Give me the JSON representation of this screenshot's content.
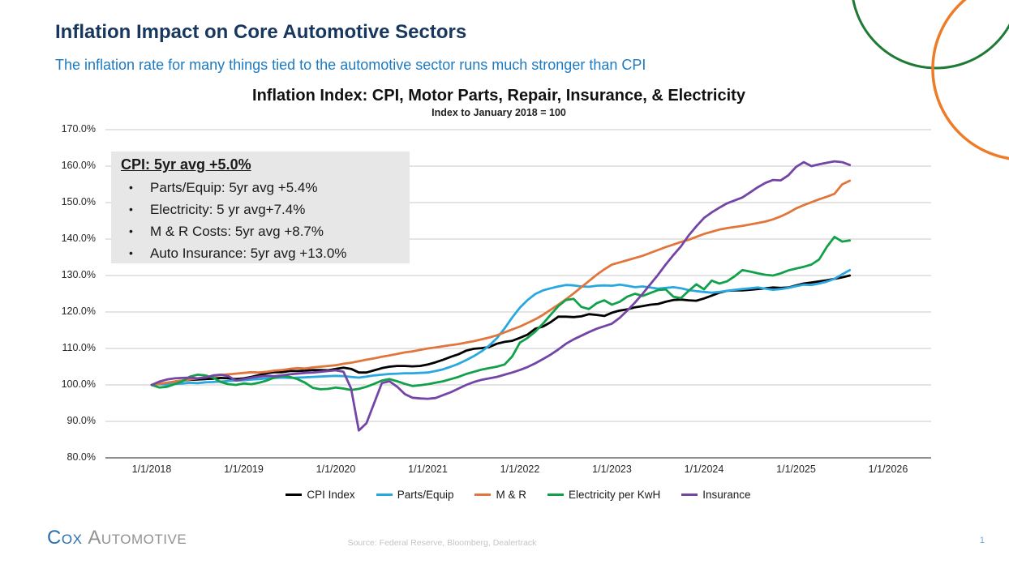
{
  "slide": {
    "title": "Inflation Impact on Core Automotive Sectors",
    "subtitle": "The inflation rate for many things tied to the automotive sector runs much stronger than CPI",
    "source": "Source: Federal Reserve, Bloomberg, Dealertrack",
    "page_number": "1",
    "logo_cox": "COX",
    "logo_auto": "AUTOMOTIVE",
    "logo_colors": {
      "cox_blue": "#2a6fad",
      "automotive_gray": "#909294"
    },
    "accent_colors": {
      "title_navy": "#17375e",
      "subtitle_blue": "#1e7ac0",
      "decor_green": "#1e7a34",
      "decor_orange": "#ee7b28"
    }
  },
  "annotation": {
    "heading": "CPI: 5yr avg +5.0%",
    "bullets": [
      "Parts/Equip: 5yr avg +5.4%",
      "Electricity: 5 yr avg+7.4%",
      "M & R Costs: 5yr avg +8.7%",
      "Auto Insurance: 5yr avg +13.0%"
    ]
  },
  "chart_data": {
    "type": "line",
    "title": "Inflation Index: CPI, Motor Parts, Repair, Insurance, & Electricity",
    "subtitle": "Index to January 2018 = 100",
    "x_start": "1/1/2018",
    "x_frequency": "monthly",
    "x_end": "8/1/2025",
    "x_tick_labels": [
      "1/1/2018",
      "1/1/2019",
      "1/1/2020",
      "1/1/2021",
      "1/1/2022",
      "1/1/2023",
      "1/1/2024",
      "1/1/2025",
      "1/1/2026"
    ],
    "y_tick_labels": [
      "170.0%",
      "160.0%",
      "150.0%",
      "140.0%",
      "130.0%",
      "120.0%",
      "110.0%",
      "100.0%",
      "90.0%",
      "80.0%"
    ],
    "ylim": [
      80,
      170
    ],
    "grid": true,
    "legend_position": "bottom",
    "grid_color": "#c9c9c9",
    "axis_color": "#6b6b6b",
    "series": [
      {
        "name": "CPI Index",
        "color": "#000000",
        "values": [
          100.0,
          100.3,
          100.5,
          100.9,
          101.2,
          101.4,
          101.5,
          101.6,
          101.7,
          101.9,
          101.8,
          101.6,
          101.8,
          102.2,
          102.7,
          103.2,
          103.5,
          103.5,
          103.8,
          103.8,
          103.9,
          104.1,
          104.1,
          104.0,
          104.4,
          104.7,
          104.4,
          103.4,
          103.4,
          104.0,
          104.6,
          105.0,
          105.2,
          105.2,
          105.1,
          105.2,
          105.6,
          106.2,
          106.9,
          107.7,
          108.4,
          109.4,
          109.9,
          110.1,
          110.4,
          111.3,
          111.8,
          112.1,
          112.9,
          113.8,
          115.4,
          116.0,
          117.2,
          118.7,
          118.7,
          118.6,
          118.8,
          119.4,
          119.2,
          118.9,
          119.8,
          120.4,
          120.7,
          121.3,
          121.6,
          122.0,
          122.2,
          122.8,
          123.3,
          123.4,
          123.2,
          123.1,
          123.7,
          124.5,
          125.3,
          125.8,
          125.9,
          125.9,
          126.1,
          126.3,
          126.5,
          126.7,
          126.6,
          126.7,
          127.3,
          127.8,
          128.1,
          128.4,
          128.7,
          129.1,
          129.5,
          130.0
        ]
      },
      {
        "name": "Parts/Equip",
        "color": "#29a8e0",
        "values": [
          100.0,
          100.2,
          100.1,
          100.3,
          100.4,
          100.6,
          100.5,
          100.7,
          100.8,
          100.9,
          101.1,
          101.2,
          101.3,
          101.5,
          101.6,
          101.8,
          101.9,
          102.0,
          101.9,
          102.0,
          102.1,
          102.2,
          102.3,
          102.4,
          102.5,
          102.4,
          102.2,
          102.0,
          102.3,
          102.6,
          102.8,
          103.0,
          103.1,
          103.2,
          103.2,
          103.3,
          103.4,
          103.8,
          104.3,
          105.0,
          105.8,
          106.8,
          107.9,
          109.2,
          110.8,
          112.8,
          115.5,
          118.5,
          121.2,
          123.3,
          124.9,
          125.9,
          126.5,
          127.0,
          127.4,
          127.3,
          127.0,
          126.9,
          127.2,
          127.3,
          127.2,
          127.5,
          127.2,
          126.8,
          127.0,
          126.7,
          126.4,
          126.6,
          126.8,
          126.5,
          126.0,
          125.7,
          125.5,
          125.3,
          125.5,
          125.8,
          126.1,
          126.3,
          126.5,
          126.7,
          126.4,
          126.1,
          126.3,
          126.6,
          127.1,
          127.5,
          127.4,
          127.8,
          128.3,
          129.1,
          130.3,
          131.5
        ]
      },
      {
        "name": "M & R",
        "color": "#e1763c",
        "values": [
          100.0,
          100.3,
          100.6,
          100.9,
          101.2,
          101.5,
          101.8,
          102.1,
          102.4,
          102.7,
          102.9,
          103.1,
          103.3,
          103.5,
          103.4,
          103.6,
          103.9,
          104.1,
          104.4,
          104.6,
          104.5,
          104.8,
          105.0,
          105.2,
          105.4,
          105.8,
          106.1,
          106.5,
          106.9,
          107.3,
          107.7,
          108.1,
          108.5,
          108.9,
          109.2,
          109.6,
          110.0,
          110.3,
          110.6,
          110.9,
          111.2,
          111.6,
          112.0,
          112.5,
          113.0,
          113.6,
          114.4,
          115.2,
          116.0,
          117.0,
          118.0,
          119.2,
          120.6,
          122.0,
          123.5,
          125.1,
          126.8,
          128.5,
          130.2,
          131.7,
          133.0,
          133.6,
          134.2,
          134.8,
          135.4,
          136.2,
          137.0,
          137.8,
          138.5,
          139.2,
          139.8,
          140.6,
          141.4,
          142.0,
          142.6,
          143.0,
          143.3,
          143.6,
          144.0,
          144.4,
          144.8,
          145.4,
          146.2,
          147.2,
          148.4,
          149.3,
          150.1,
          150.9,
          151.6,
          152.4,
          155.0,
          156.0
        ]
      },
      {
        "name": "Electricity per KwH",
        "color": "#12a14b",
        "values": [
          100.0,
          99.3,
          99.5,
          100.2,
          101.0,
          102.3,
          102.8,
          102.6,
          102.0,
          100.8,
          100.2,
          100.0,
          100.4,
          100.2,
          100.6,
          101.2,
          102.0,
          102.4,
          102.2,
          101.6,
          100.6,
          99.2,
          98.8,
          98.9,
          99.3,
          99.0,
          98.6,
          98.9,
          99.5,
          100.3,
          101.2,
          101.6,
          101.0,
          100.3,
          99.7,
          99.9,
          100.2,
          100.6,
          101.0,
          101.6,
          102.2,
          103.0,
          103.6,
          104.2,
          104.6,
          105.0,
          105.6,
          107.8,
          111.6,
          112.9,
          114.6,
          116.8,
          119.2,
          121.6,
          123.3,
          123.6,
          121.4,
          120.8,
          122.4,
          123.2,
          122.0,
          122.8,
          124.2,
          125.0,
          124.4,
          125.2,
          126.0,
          126.2,
          124.2,
          123.8,
          125.8,
          127.6,
          126.2,
          128.6,
          127.8,
          128.4,
          129.8,
          131.5,
          131.1,
          130.6,
          130.2,
          130.0,
          130.6,
          131.4,
          131.9,
          132.4,
          133.0,
          134.4,
          137.8,
          140.6,
          139.3,
          139.6
        ]
      },
      {
        "name": "Insurance",
        "color": "#7345a5",
        "values": [
          100.0,
          100.9,
          101.5,
          101.8,
          101.9,
          102.0,
          101.8,
          102.0,
          102.6,
          102.8,
          102.4,
          101.2,
          101.6,
          102.0,
          102.3,
          102.5,
          102.4,
          102.6,
          102.9,
          103.1,
          103.3,
          103.4,
          103.6,
          103.8,
          104.0,
          103.6,
          99.0,
          87.5,
          89.5,
          95.0,
          100.5,
          101.0,
          99.5,
          97.5,
          96.5,
          96.3,
          96.2,
          96.4,
          97.2,
          98.0,
          99.0,
          100.0,
          100.8,
          101.4,
          101.8,
          102.2,
          102.8,
          103.4,
          104.1,
          104.9,
          105.9,
          107.1,
          108.3,
          109.7,
          111.3,
          112.5,
          113.5,
          114.5,
          115.4,
          116.1,
          116.8,
          118.4,
          120.4,
          122.6,
          125.0,
          127.6,
          130.2,
          133.0,
          135.6,
          138.0,
          141.0,
          143.5,
          145.8,
          147.3,
          148.6,
          149.8,
          150.6,
          151.4,
          152.8,
          154.2,
          155.4,
          156.2,
          156.1,
          157.5,
          159.8,
          161.1,
          160.0,
          160.5,
          160.9,
          161.3,
          161.1,
          160.3
        ]
      }
    ]
  }
}
